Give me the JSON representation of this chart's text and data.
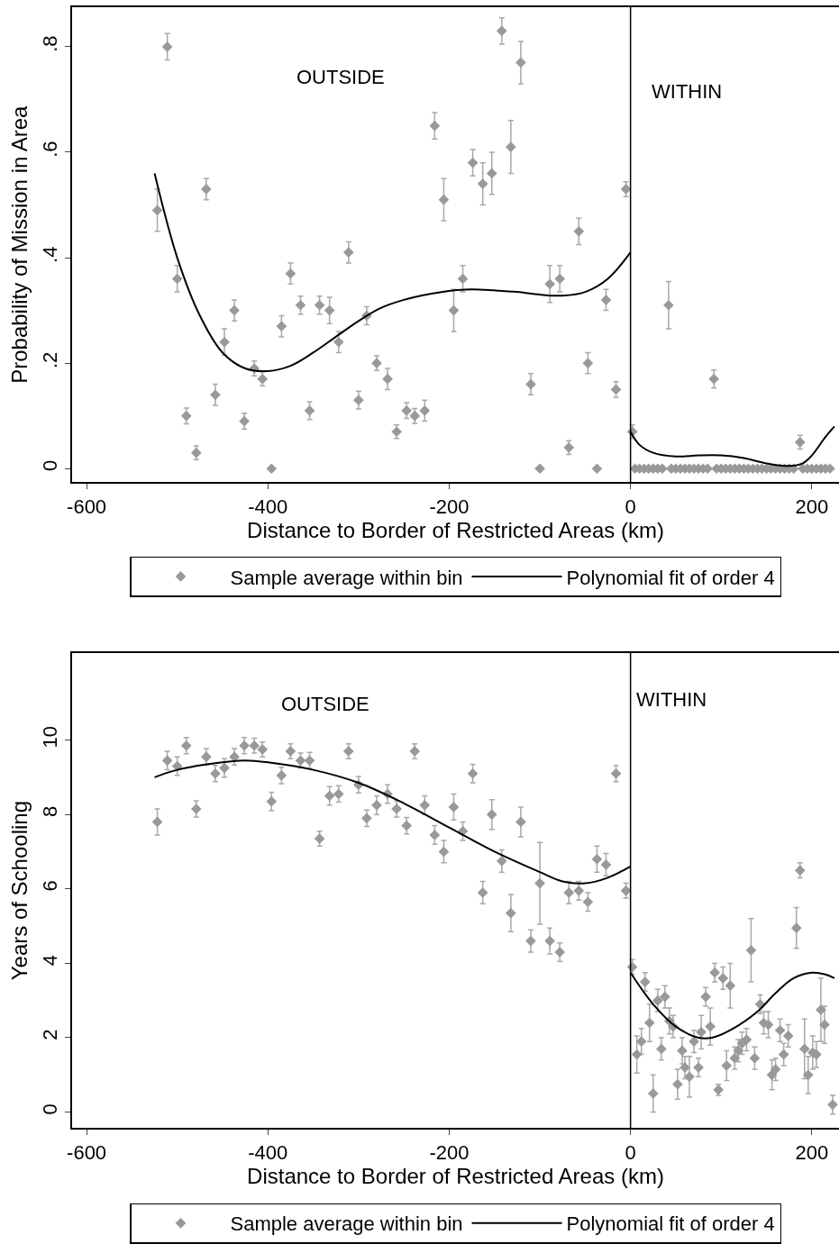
{
  "chart_data": [
    {
      "type": "scatter",
      "xlabel": "Distance to Border of Restricted Areas (km)",
      "ylabel": "Probability of Mission in Area",
      "xlim": [
        -616,
        230
      ],
      "xticks": [
        -600,
        -400,
        -200,
        0,
        200
      ],
      "ylim": [
        -0.026,
        0.875
      ],
      "yticks": [
        0,
        {
          "value": 0.2,
          "label": ".2"
        },
        {
          "value": 0.4,
          "label": ".4"
        },
        {
          "value": 0.6,
          "label": ".6"
        },
        {
          "value": 0.8,
          "label": ".8"
        }
      ],
      "legend": "bottom",
      "marker": "diamond",
      "series": [
        {
          "name": "Sample average within bin",
          "color": "#999999",
          "x": [
            -522,
            -511,
            -500,
            -490,
            -479,
            -468,
            -458,
            -448,
            -437,
            -426,
            -415,
            -406,
            -396,
            -385,
            -375,
            -364,
            -354,
            -343,
            -332,
            -322,
            -311,
            -300,
            -291,
            -280,
            -268,
            -258,
            -247,
            -238,
            -227,
            -216,
            -206,
            -195,
            -185,
            -174,
            -163,
            -153,
            -142,
            -132,
            -121,
            -110,
            -100,
            -89,
            -78,
            -68,
            -57,
            -47,
            -37,
            -27,
            -16,
            -5,
            2,
            42,
            92,
            187,
            5,
            10,
            15,
            20,
            25,
            30,
            35,
            45,
            50,
            55,
            60,
            65,
            70,
            75,
            80,
            85,
            95,
            100,
            105,
            110,
            115,
            120,
            125,
            130,
            135,
            140,
            145,
            150,
            155,
            160,
            165,
            170,
            175,
            180,
            190,
            195,
            200,
            205,
            210,
            215,
            220
          ],
          "values": [
            0.49,
            0.8,
            0.36,
            0.1,
            0.03,
            0.53,
            0.14,
            0.24,
            0.3,
            0.09,
            0.19,
            0.17,
            0.0,
            0.27,
            0.37,
            0.31,
            0.11,
            0.31,
            0.3,
            0.24,
            0.41,
            0.13,
            0.29,
            0.2,
            0.17,
            0.07,
            0.11,
            0.1,
            0.11,
            0.65,
            0.51,
            0.3,
            0.36,
            0.58,
            0.54,
            0.56,
            0.83,
            0.61,
            0.77,
            0.16,
            0.0,
            0.35,
            0.36,
            0.04,
            0.45,
            0.2,
            0.0,
            0.32,
            0.15,
            0.53,
            0.07,
            0.31,
            0.17,
            0.05,
            0,
            0,
            0,
            0,
            0,
            0,
            0,
            0,
            0,
            0,
            0,
            0,
            0,
            0,
            0,
            0,
            0,
            0,
            0,
            0,
            0,
            0,
            0,
            0,
            0,
            0,
            0,
            0,
            0,
            0,
            0,
            0,
            0,
            0,
            0,
            0,
            0,
            0,
            0,
            0,
            0
          ],
          "errors": [
            0.04,
            0.025,
            0.025,
            0.015,
            0.013,
            0.02,
            0.02,
            0.025,
            0.02,
            0.015,
            0.014,
            0.013,
            null,
            0.02,
            0.02,
            0.017,
            0.017,
            0.017,
            0.025,
            0.02,
            0.02,
            0.017,
            0.017,
            0.014,
            0.02,
            0.013,
            0.015,
            0.014,
            0.02,
            0.025,
            0.04,
            0.04,
            0.025,
            0.025,
            0.04,
            0.04,
            0.025,
            0.05,
            0.04,
            0.02,
            null,
            0.035,
            0.025,
            0.013,
            0.025,
            0.02,
            null,
            0.02,
            0.015,
            0.014,
            0.013,
            0.045,
            0.017,
            0.013,
            null,
            null,
            null,
            null,
            null,
            null,
            null,
            null,
            null,
            null,
            null,
            null,
            null,
            null,
            null,
            null,
            null,
            null,
            null,
            null,
            null,
            null,
            null,
            null,
            null,
            null,
            null,
            null,
            null,
            null,
            null,
            null,
            null,
            null,
            null,
            null,
            null,
            null,
            null,
            null,
            null
          ]
        },
        {
          "name": "Polynomial fit of order 4",
          "type": "line",
          "color": "#000000",
          "marker": "none",
          "x": [
            -525,
            -500,
            -475,
            -450,
            -425,
            -400,
            -375,
            -350,
            -325,
            -300,
            -275,
            -250,
            -225,
            -200,
            -175,
            -150,
            -125,
            -100,
            -75,
            -50,
            -25,
            0
          ],
          "values": [
            0.56,
            0.4,
            0.29,
            0.22,
            0.19,
            0.185,
            0.195,
            0.22,
            0.25,
            0.28,
            0.305,
            0.32,
            0.33,
            0.337,
            0.34,
            0.338,
            0.335,
            0.33,
            0.328,
            0.335,
            0.36,
            0.41
          ]
        },
        {
          "type": "line",
          "color": "#000000",
          "marker": "none",
          "x": [
            0,
            10,
            25,
            50,
            75,
            100,
            125,
            150,
            175,
            190,
            200,
            215,
            225
          ],
          "values": [
            0.07,
            0.045,
            0.03,
            0.023,
            0.025,
            0.025,
            0.02,
            0.01,
            0.005,
            0.01,
            0.025,
            0.06,
            0.08
          ]
        }
      ],
      "ref_lines": [
        {
          "axis": "x",
          "value": 0,
          "color": "#000000"
        }
      ],
      "annotations": [
        "OUTSIDE",
        "WITHIN"
      ]
    },
    {
      "type": "scatter",
      "xlabel": "Distance to Border of Restricted Areas (km)",
      "ylabel": "Years of Schooling",
      "xlim": [
        -616,
        230
      ],
      "xticks": [
        -600,
        -400,
        -200,
        0,
        200
      ],
      "ylim": [
        -0.43,
        12.34
      ],
      "yticks": [
        0,
        2,
        4,
        6,
        8,
        10
      ],
      "legend": "bottom",
      "marker": "diamond",
      "series": [
        {
          "name": "Sample average within bin",
          "color": "#999999",
          "x": [
            -522,
            -511,
            -500,
            -490,
            -479,
            -468,
            -458,
            -448,
            -437,
            -426,
            -415,
            -406,
            -396,
            -385,
            -375,
            -364,
            -354,
            -343,
            -332,
            -322,
            -311,
            -300,
            -291,
            -280,
            -268,
            -258,
            -247,
            -238,
            -227,
            -216,
            -206,
            -195,
            -185,
            -174,
            -163,
            -153,
            -142,
            -132,
            -121,
            -110,
            -100,
            -89,
            -78,
            -68,
            -57,
            -47,
            -37,
            -27,
            -16,
            -5,
            2,
            16,
            7,
            12,
            21,
            25,
            30,
            34,
            38,
            43,
            47,
            52,
            57,
            60,
            65,
            70,
            75,
            78,
            83,
            88,
            93,
            97,
            102,
            106,
            110,
            115,
            119,
            123,
            128,
            133,
            137,
            143,
            147,
            152,
            156,
            160,
            165,
            169,
            174,
            183,
            187,
            192,
            196,
            201,
            205,
            210,
            214,
            223
          ],
          "values": [
            7.8,
            9.45,
            9.3,
            9.85,
            8.15,
            9.55,
            9.1,
            9.25,
            9.55,
            9.85,
            9.85,
            9.75,
            8.35,
            9.05,
            9.7,
            9.45,
            9.45,
            7.35,
            8.5,
            8.55,
            9.7,
            8.8,
            7.9,
            8.25,
            8.55,
            8.15,
            7.7,
            9.7,
            8.25,
            7.45,
            7.0,
            8.2,
            7.55,
            9.1,
            5.9,
            8.0,
            6.75,
            5.35,
            7.8,
            4.6,
            6.15,
            4.6,
            4.3,
            5.9,
            5.95,
            5.65,
            6.8,
            6.65,
            9.1,
            5.95,
            3.9,
            3.5,
            1.55,
            1.9,
            2.4,
            0.5,
            3.0,
            1.7,
            3.1,
            2.45,
            2.3,
            0.75,
            1.65,
            1.2,
            0.95,
            1.9,
            1.2,
            2.15,
            3.1,
            2.3,
            3.75,
            0.6,
            3.6,
            1.25,
            3.4,
            1.45,
            1.65,
            1.85,
            1.95,
            4.35,
            1.45,
            2.9,
            2.4,
            2.35,
            1.0,
            1.15,
            2.2,
            1.55,
            2.05,
            4.95,
            6.5,
            1.7,
            1.0,
            1.6,
            1.55,
            2.75,
            2.35,
            0.2
          ],
          "errors": [
            0.35,
            0.25,
            0.25,
            0.22,
            0.22,
            0.22,
            0.22,
            0.25,
            0.22,
            0.22,
            0.2,
            0.2,
            0.25,
            0.22,
            0.2,
            0.2,
            0.22,
            0.2,
            0.25,
            0.22,
            0.2,
            0.22,
            0.22,
            0.25,
            0.25,
            0.22,
            0.22,
            0.2,
            0.25,
            0.25,
            0.3,
            0.35,
            0.25,
            0.25,
            0.3,
            0.4,
            0.3,
            0.5,
            0.4,
            0.3,
            1.1,
            0.35,
            0.25,
            0.3,
            0.25,
            0.25,
            0.35,
            0.3,
            0.22,
            0.2,
            0.2,
            0.25,
            0.5,
            0.35,
            0.5,
            0.5,
            0.3,
            0.3,
            0.3,
            0.35,
            0.3,
            0.4,
            0.35,
            0.3,
            0.55,
            0.3,
            0.25,
            0.45,
            0.25,
            0.5,
            0.25,
            0.15,
            0.3,
            0.4,
            0.6,
            0.3,
            0.3,
            0.3,
            0.3,
            0.85,
            0.3,
            0.25,
            0.3,
            0.35,
            0.4,
            0.3,
            0.3,
            0.3,
            0.3,
            0.55,
            0.2,
            0.8,
            0.5,
            0.45,
            0.35,
            0.85,
            0.5,
            0.25
          ]
        },
        {
          "name": "Polynomial fit of order 4",
          "type": "line",
          "color": "#000000",
          "marker": "none",
          "x": [
            -525,
            -500,
            -450,
            -425,
            -400,
            -350,
            -300,
            -250,
            -200,
            -150,
            -100,
            -75,
            -50,
            -25,
            0
          ],
          "values": [
            9.0,
            9.2,
            9.4,
            9.45,
            9.4,
            9.2,
            8.85,
            8.3,
            7.65,
            7.0,
            6.45,
            6.2,
            6.15,
            6.3,
            6.6
          ]
        },
        {
          "type": "line",
          "color": "#000000",
          "marker": "none",
          "x": [
            0,
            25,
            50,
            75,
            90,
            110,
            140,
            160,
            180,
            200,
            215,
            225
          ],
          "values": [
            3.75,
            2.9,
            2.3,
            2.0,
            2.0,
            2.2,
            2.7,
            3.2,
            3.6,
            3.75,
            3.7,
            3.6
          ]
        }
      ],
      "ref_lines": [
        {
          "axis": "x",
          "value": 0,
          "color": "#000000"
        }
      ],
      "annotations": [
        "OUTSIDE",
        "WITHIN"
      ]
    }
  ]
}
